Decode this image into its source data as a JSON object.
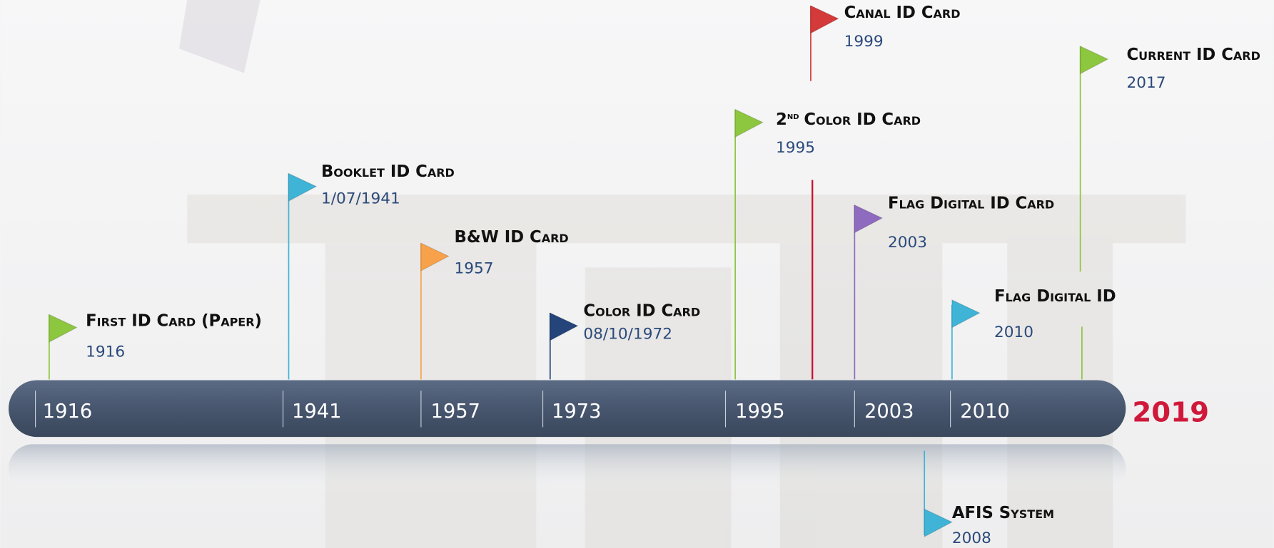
{
  "timeline": {
    "years": [
      "1916",
      "1941",
      "1957",
      "1973",
      "1995",
      "2003",
      "2010"
    ],
    "end_year": "2019"
  },
  "milestones": [
    {
      "title": "First ID Card (Paper)",
      "date": "1916"
    },
    {
      "title": "Booklet ID Card",
      "date": "1/07/1941"
    },
    {
      "title": "B&W ID Card",
      "date": "1957"
    },
    {
      "title": "Color ID Card",
      "date": "08/10/1972"
    },
    {
      "ordinal": "2",
      "ordinal_suffix": "nd",
      "title": "Color ID Card",
      "date": "1995"
    },
    {
      "title": "Canal ID Card",
      "date": "1999"
    },
    {
      "title": "Flag Digital ID Card",
      "date": "2003"
    },
    {
      "title": "Flag Digital ID",
      "date": "2010"
    },
    {
      "title": "Current ID Card",
      "date": "2017"
    },
    {
      "title": "AFIS System",
      "date": "2008"
    }
  ]
}
